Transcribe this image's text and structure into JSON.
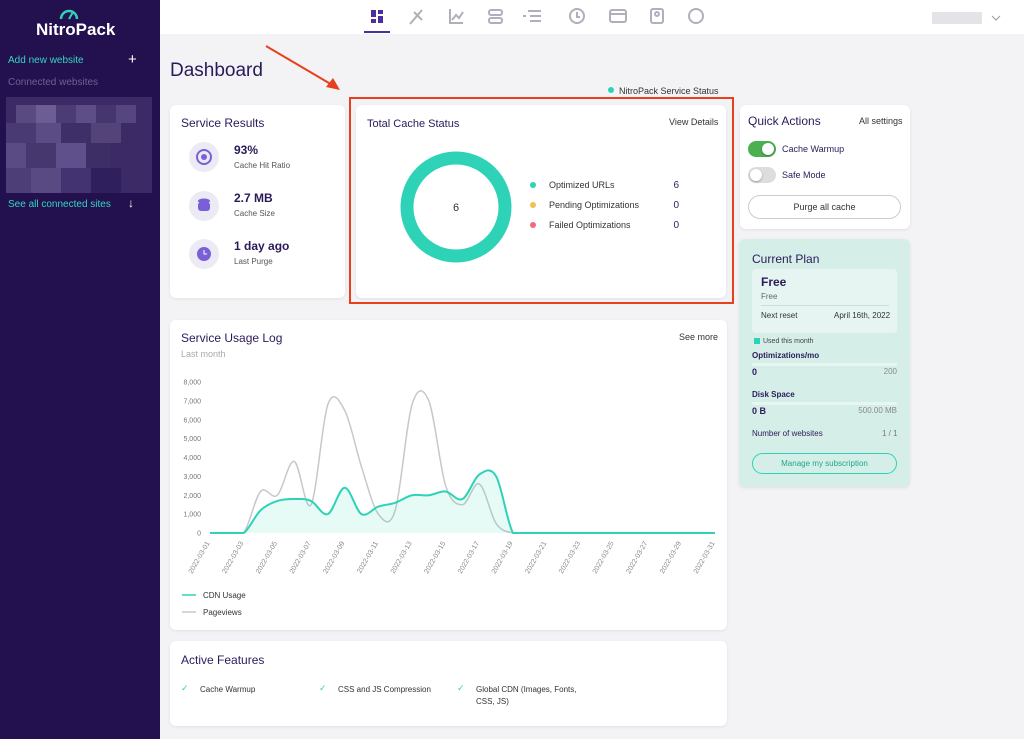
{
  "sidebar": {
    "logo": "NitroPack",
    "add_website": "Add new website",
    "connected_websites": "Connected websites",
    "see_all": "See all connected sites"
  },
  "header": {
    "title": "Dashboard",
    "service_status": "NitroPack Service Status"
  },
  "service_results": {
    "title": "Service Results",
    "items": [
      {
        "value": "93%",
        "label": "Cache Hit Ratio"
      },
      {
        "value": "2.7 MB",
        "label": "Cache Size"
      },
      {
        "value": "1 day ago",
        "label": "Last Purge"
      }
    ]
  },
  "cache_status": {
    "title": "Total Cache Status",
    "link": "View Details",
    "chart_data": {
      "type": "donut",
      "total": 6,
      "categories": [
        "Optimized URLs",
        "Pending Optimizations",
        "Failed Optimizations"
      ],
      "values": [
        6,
        0,
        0
      ],
      "colors": [
        "#2ed3b7",
        "#f2c14e",
        "#f06b7a"
      ]
    }
  },
  "quick_actions": {
    "title": "Quick Actions",
    "link": "All settings",
    "toggles": [
      {
        "label": "Cache Warmup",
        "on": true
      },
      {
        "label": "Safe Mode",
        "on": false
      }
    ],
    "button": "Purge all cache"
  },
  "current_plan": {
    "title": "Current Plan",
    "plan": "Free",
    "plan_sub": "Free",
    "next_reset_label": "Next reset",
    "next_reset": "April 16th, 2022",
    "legend": "Used this month",
    "usage": [
      {
        "label": "Optimizations/mo",
        "used": "0",
        "limit": "200"
      },
      {
        "label": "Disk Space",
        "used": "0 B",
        "limit": "500.00 MB"
      }
    ],
    "websites_label": "Number of websites",
    "websites": "1 / 1",
    "button": "Manage my subscription"
  },
  "usage_log": {
    "title": "Service Usage Log",
    "subtitle": "Last month",
    "link": "See more",
    "chart_data": {
      "type": "line",
      "x": [
        "2022-03-01",
        null,
        "2022-03-03",
        null,
        "2022-03-05",
        null,
        "2022-03-07",
        null,
        "2022-03-09",
        null,
        "2022-03-11",
        null,
        "2022-03-13",
        null,
        "2022-03-15",
        null,
        "2022-03-17",
        null,
        "2022-03-19",
        null,
        "2022-03-21",
        null,
        "2022-03-23",
        null,
        "2022-03-25",
        null,
        "2022-03-27",
        null,
        "2022-03-29",
        null,
        "2022-03-31"
      ],
      "series": [
        {
          "name": "CDN Usage",
          "color": "#2ed3b7",
          "values": [
            0,
            0,
            0,
            1200,
            1700,
            1800,
            1700,
            1000,
            2400,
            1000,
            1400,
            1600,
            2000,
            2000,
            2200,
            1800,
            3100,
            3000,
            0,
            0,
            0,
            0,
            0,
            0,
            0,
            0,
            0,
            0,
            0,
            0,
            0
          ]
        },
        {
          "name": "Pageviews",
          "color": "#c8c8c8",
          "values": [
            0,
            0,
            0,
            2200,
            2000,
            3800,
            1500,
            6800,
            6500,
            3500,
            1000,
            1200,
            6800,
            7000,
            2500,
            1500,
            2600,
            500,
            0,
            0,
            0,
            0,
            0,
            0,
            0,
            0,
            0,
            0,
            0,
            0,
            0
          ]
        }
      ],
      "ylim": [
        0,
        8000
      ],
      "yticks": [
        0,
        {
          "value": 1000,
          "label": "1,000"
        },
        {
          "value": 2000,
          "label": "2,000"
        },
        {
          "value": 3000,
          "label": "3,000"
        },
        {
          "value": 4000,
          "label": "4,000"
        },
        {
          "value": 5000,
          "label": "5,000"
        },
        {
          "value": 6000,
          "label": "6,000"
        },
        {
          "value": 7000,
          "label": "7,000"
        },
        {
          "value": 8000,
          "label": "8,000"
        }
      ]
    }
  },
  "active_features": {
    "title": "Active Features",
    "items": [
      "Cache Warmup",
      "CSS and JS Compression",
      "Global CDN (Images, Fonts, CSS, JS)"
    ]
  }
}
